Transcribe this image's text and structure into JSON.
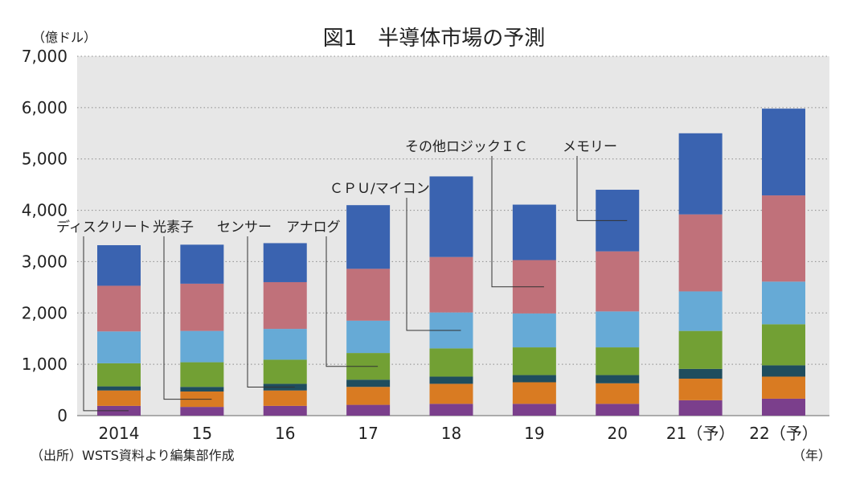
{
  "chart_data": {
    "type": "bar",
    "stacked": true,
    "title": "図1　半導体市場の予測",
    "ylabel": "（億ドル）",
    "xlabel": "（年）",
    "source": "（出所）WSTS資料より編集部作成",
    "ylim": [
      0,
      7000
    ],
    "yticks": [
      0,
      1000,
      2000,
      3000,
      4000,
      5000,
      6000,
      7000
    ],
    "ytick_labels": [
      "0",
      "1,000",
      "2,000",
      "3,000",
      "4,000",
      "5,000",
      "6,000",
      "7,000"
    ],
    "grid": true,
    "categories": [
      "2014",
      "15",
      "16",
      "17",
      "18",
      "19",
      "20",
      "21（予）",
      "22（予）"
    ],
    "series": [
      {
        "name": "ディスクリート",
        "color": "#7b3f8c",
        "values": [
          190,
          170,
          190,
          210,
          230,
          230,
          230,
          300,
          330
        ]
      },
      {
        "name": "光素子",
        "color": "#d97b22",
        "values": [
          300,
          300,
          300,
          350,
          390,
          420,
          400,
          420,
          430
        ]
      },
      {
        "name": "センサー",
        "color": "#1f4d5e",
        "values": [
          80,
          90,
          130,
          140,
          140,
          140,
          160,
          190,
          220
        ]
      },
      {
        "name": "アナログ",
        "color": "#72a034",
        "values": [
          450,
          480,
          470,
          520,
          550,
          540,
          540,
          740,
          800
        ]
      },
      {
        "name": "CPU/マイコン",
        "color": "#66aad6",
        "values": [
          620,
          610,
          600,
          630,
          700,
          660,
          700,
          770,
          830
        ]
      },
      {
        "name": "その他ロジックＩＣ",
        "color": "#c0717a",
        "values": [
          890,
          920,
          910,
          1010,
          1080,
          1040,
          1170,
          1500,
          1680
        ]
      },
      {
        "name": "メモリー",
        "color": "#3a63b0",
        "values": [
          790,
          760,
          760,
          1240,
          1570,
          1080,
          1200,
          1580,
          1690
        ]
      }
    ]
  },
  "annotations": [
    {
      "label": "ディスクリート",
      "series": 0,
      "bar": 0
    },
    {
      "label": "光素子",
      "series": 1,
      "bar": 1
    },
    {
      "label": "センサー",
      "series": 2,
      "bar": 2
    },
    {
      "label": "アナログ",
      "series": 3,
      "bar": 3
    },
    {
      "label": "ＣＰＵ/マイコン",
      "series": 4,
      "bar": 4
    },
    {
      "label": "その他ロジックＩＣ",
      "series": 5,
      "bar": 5
    },
    {
      "label": "メモリー",
      "series": 6,
      "bar": 6
    }
  ]
}
